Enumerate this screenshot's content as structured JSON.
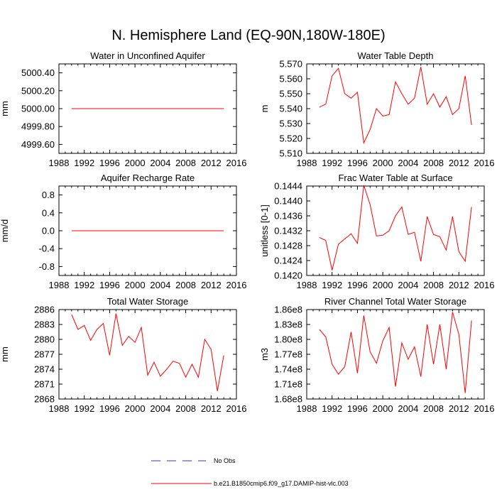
{
  "title": "N. Hemisphere Land (EQ-90N,180W-180E)",
  "series_color": "#ff0000",
  "obs_color": "#3333cc",
  "legend": {
    "obs_label": "No Obs",
    "model_label": "b.e21.B1850cmip6.f09_g17.DAMIP-hist-vlc.003"
  },
  "chart_data": [
    {
      "type": "line",
      "title": "Water in Unconfined Aquifer",
      "ylabel": "mm",
      "xlim": [
        1988,
        2016
      ],
      "xticks": [
        "1988",
        "1992",
        "1996",
        "2000",
        "2004",
        "2008",
        "2012",
        "2016"
      ],
      "ylim": [
        4999.5,
        5000.5
      ],
      "yticks": [
        4999.6,
        4999.8,
        5000.0,
        5000.2,
        5000.4
      ],
      "ytick_labels": [
        "4999.60",
        "4999.80",
        "5000.00",
        "5000.20",
        "5000.40"
      ],
      "x": [
        1990,
        1991,
        1992,
        1993,
        1994,
        1995,
        1996,
        1997,
        1998,
        1999,
        2000,
        2001,
        2002,
        2003,
        2004,
        2005,
        2006,
        2007,
        2008,
        2009,
        2010,
        2011,
        2012,
        2013,
        2014
      ],
      "values": [
        5000,
        5000,
        5000,
        5000,
        5000,
        5000,
        5000,
        5000,
        5000,
        5000,
        5000,
        5000,
        5000,
        5000,
        5000,
        5000,
        5000,
        5000,
        5000,
        5000,
        5000,
        5000,
        5000,
        5000,
        5000
      ]
    },
    {
      "type": "line",
      "title": "Water Table Depth",
      "ylabel": "m",
      "xlim": [
        1988,
        2016
      ],
      "xticks": [
        "1988",
        "1992",
        "1996",
        "2000",
        "2004",
        "2008",
        "2012",
        "2016"
      ],
      "ylim": [
        5.51,
        5.57
      ],
      "yticks": [
        5.51,
        5.52,
        5.53,
        5.54,
        5.55,
        5.56,
        5.57
      ],
      "ytick_labels": [
        "5.510",
        "5.520",
        "5.530",
        "5.540",
        "5.550",
        "5.560",
        "5.570"
      ],
      "x": [
        1990,
        1991,
        1992,
        1993,
        1994,
        1995,
        1996,
        1997,
        1998,
        1999,
        2000,
        2001,
        2002,
        2003,
        2004,
        2005,
        2006,
        2007,
        2008,
        2009,
        2010,
        2011,
        2012,
        2013,
        2014
      ],
      "values": [
        5.541,
        5.543,
        5.562,
        5.567,
        5.55,
        5.547,
        5.551,
        5.517,
        5.526,
        5.54,
        5.535,
        5.536,
        5.558,
        5.55,
        5.543,
        5.547,
        5.568,
        5.543,
        5.55,
        5.541,
        5.548,
        5.536,
        5.54,
        5.562,
        5.529
      ]
    },
    {
      "type": "line",
      "title": "Aquifer Recharge Rate",
      "ylabel": "mm/d",
      "xlim": [
        1988,
        2016
      ],
      "xticks": [
        "1988",
        "1992",
        "1996",
        "2000",
        "2004",
        "2008",
        "2012",
        "2016"
      ],
      "ylim": [
        -1.0,
        1.0
      ],
      "yticks": [
        -0.8,
        -0.4,
        0.0,
        0.4,
        0.8
      ],
      "ytick_labels": [
        "-0.8",
        "-0.4",
        "0.0",
        "0.4",
        "0.8"
      ],
      "x": [
        1990,
        1991,
        1992,
        1993,
        1994,
        1995,
        1996,
        1997,
        1998,
        1999,
        2000,
        2001,
        2002,
        2003,
        2004,
        2005,
        2006,
        2007,
        2008,
        2009,
        2010,
        2011,
        2012,
        2013,
        2014
      ],
      "values": [
        0,
        0,
        0,
        0,
        0,
        0,
        0,
        0,
        0,
        0,
        0,
        0,
        0,
        0,
        0,
        0,
        0,
        0,
        0,
        0,
        0,
        0,
        0,
        0,
        0
      ]
    },
    {
      "type": "line",
      "title": "Frac Water Table at Surface",
      "ylabel": "unitless [0-1]",
      "xlim": [
        1988,
        2016
      ],
      "xticks": [
        "1988",
        "1992",
        "1996",
        "2000",
        "2004",
        "2008",
        "2012",
        "2016"
      ],
      "ylim": [
        0.142,
        0.1444
      ],
      "yticks": [
        0.142,
        0.1424,
        0.1428,
        0.1432,
        0.1436,
        0.144,
        0.1444
      ],
      "ytick_labels": [
        "0.1420",
        "0.1424",
        "0.1428",
        "0.1432",
        "0.1436",
        "0.1440",
        "0.1444"
      ],
      "x": [
        1990,
        1991,
        1992,
        1993,
        1994,
        1995,
        1996,
        1997,
        1998,
        1999,
        2000,
        2001,
        2002,
        2003,
        2004,
        2005,
        2006,
        2007,
        2008,
        2009,
        2010,
        2011,
        2012,
        2013,
        2014
      ],
      "values": [
        0.14302,
        0.14294,
        0.14214,
        0.14284,
        0.14298,
        0.14312,
        0.14286,
        0.14442,
        0.1439,
        0.14306,
        0.14308,
        0.1432,
        0.1436,
        0.14384,
        0.1431,
        0.14316,
        0.14238,
        0.14358,
        0.1431,
        0.14304,
        0.14268,
        0.14358,
        0.14264,
        0.14238,
        0.14384
      ]
    },
    {
      "type": "line",
      "title": "Total Water Storage",
      "ylabel": "mm",
      "xlim": [
        1988,
        2016
      ],
      "xticks": [
        "1988",
        "1992",
        "1996",
        "2000",
        "2004",
        "2008",
        "2012",
        "2016"
      ],
      "ylim": [
        2868,
        2886
      ],
      "yticks": [
        2868,
        2871,
        2874,
        2877,
        2880,
        2883,
        2886
      ],
      "ytick_labels": [
        "2868",
        "2871",
        "2874",
        "2877",
        "2880",
        "2883",
        "2886"
      ],
      "x": [
        1990,
        1991,
        1992,
        1993,
        1994,
        1995,
        1996,
        1997,
        1998,
        1999,
        2000,
        2001,
        2002,
        2003,
        2004,
        2005,
        2006,
        2007,
        2008,
        2009,
        2010,
        2011,
        2012,
        2013,
        2014
      ],
      "values": [
        2885.0,
        2882.0,
        2882.8,
        2879.8,
        2882.0,
        2883.2,
        2876.8,
        2885.2,
        2878.8,
        2880.6,
        2879.4,
        2882.4,
        2872.8,
        2875.4,
        2872.6,
        2874.0,
        2875.6,
        2875.2,
        2872.4,
        2875.0,
        2872.4,
        2880.0,
        2878.0,
        2869.6,
        2876.8
      ]
    },
    {
      "type": "line",
      "title": "River Channel Total Water Storage",
      "ylabel": "m3",
      "xlim": [
        1988,
        2016
      ],
      "xticks": [
        "1988",
        "1992",
        "1996",
        "2000",
        "2004",
        "2008",
        "2012",
        "2016"
      ],
      "ylim": [
        168000000,
        186000000
      ],
      "yticks": [
        168000000,
        171000000,
        174000000,
        177000000,
        180000000,
        183000000,
        186000000
      ],
      "ytick_labels": [
        "1.68e8",
        "1.71e8",
        "1.74e8",
        "1.77e8",
        "1.80e8",
        "1.83e8",
        "1.86e8"
      ],
      "x": [
        1990,
        1991,
        1992,
        1993,
        1994,
        1995,
        1996,
        1997,
        1998,
        1999,
        2000,
        2001,
        2002,
        2003,
        2004,
        2005,
        2006,
        2007,
        2008,
        2009,
        2010,
        2011,
        2012,
        2013,
        2014
      ],
      "values": [
        182000000,
        180500000,
        175000000,
        173000000,
        174500000,
        181500000,
        173200000,
        184800000,
        177500000,
        175200000,
        179700000,
        182400000,
        170500000,
        179300000,
        176000000,
        178500000,
        172500000,
        183000000,
        175000000,
        183000000,
        174000000,
        185500000,
        181000000,
        169200000,
        183800000
      ]
    }
  ]
}
